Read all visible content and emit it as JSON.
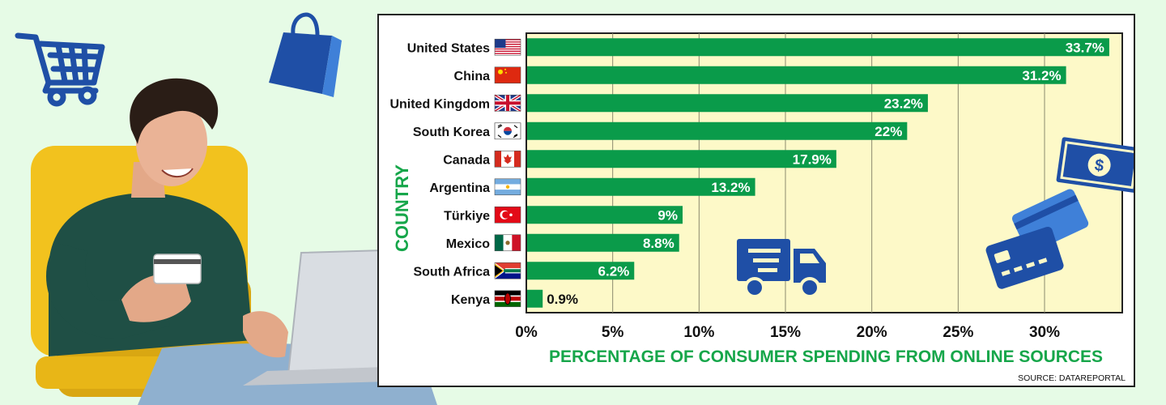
{
  "chart_data": {
    "type": "bar",
    "orientation": "horizontal",
    "categories": [
      "United States",
      "China",
      "United Kingdom",
      "South Korea",
      "Canada",
      "Argentina",
      "Türkiye",
      "Mexico",
      "South Africa",
      "Kenya"
    ],
    "values": [
      33.7,
      31.2,
      23.2,
      22,
      17.9,
      13.2,
      9,
      8.8,
      6.2,
      0.9
    ],
    "value_labels": [
      "33.7%",
      "31.2%",
      "23.2%",
      "22%",
      "17.9%",
      "13.2%",
      "9%",
      "8.8%",
      "6.2%",
      "0.9%"
    ],
    "xticks": [
      0,
      5,
      10,
      15,
      20,
      25,
      30
    ],
    "xtick_labels": [
      "0%",
      "5%",
      "10%",
      "15%",
      "20%",
      "25%",
      "30%"
    ],
    "xlim": [
      0,
      34.5
    ],
    "xlabel": "PERCENTAGE OF CONSUMER SPENDING FROM ONLINE SOURCES",
    "ylabel": "COUNTRY",
    "source": "SOURCE: DATAREPORTAL",
    "grid": "vertical",
    "bar_color": "#0a9b4a",
    "plot_background": "#fdf9c8"
  },
  "flags": [
    "us-flag-icon",
    "china-flag-icon",
    "uk-flag-icon",
    "south-korea-flag-icon",
    "canada-flag-icon",
    "argentina-flag-icon",
    "turkiye-flag-icon",
    "mexico-flag-icon",
    "south-africa-flag-icon",
    "kenya-flag-icon"
  ],
  "colors": {
    "page_background": "#e6fbe6",
    "accent_green": "#16a64a",
    "icon_blue": "#1f4fa6"
  }
}
